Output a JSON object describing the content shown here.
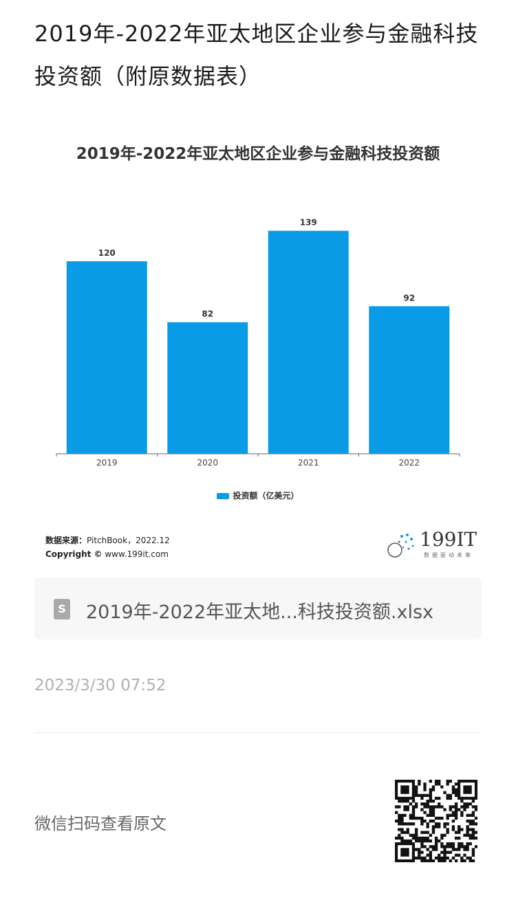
{
  "page": {
    "title": "2019年-2022年亚太地区企业参与金融科技投资额（附原数据表）"
  },
  "chart_data": {
    "type": "bar",
    "title": "2019年-2022年亚太地区企业参与金融科技投资额",
    "categories": [
      "2019",
      "2020",
      "2021",
      "2022"
    ],
    "series": [
      {
        "name": "投资额（亿美元）",
        "values": [
          120,
          82,
          139,
          92
        ],
        "color": "#0a9be6"
      }
    ],
    "ylim": [
      0,
      150
    ],
    "grid": false,
    "legend": "bottom",
    "data_labels": true
  },
  "source": {
    "label": "数据来源：",
    "text": "PitchBook，2022.12",
    "copyright_label": "Copyright ©",
    "copyright_text": " www.199it.com"
  },
  "logo": {
    "text": "199IT",
    "subtitle": "数据驱动未来"
  },
  "attachment": {
    "file_name": "2019年-2022年亚太地...科技投资额.xlsx",
    "icon": "S"
  },
  "timestamp": "2023/3/30 07:52",
  "footer": {
    "text": "微信扫码查看原文"
  }
}
